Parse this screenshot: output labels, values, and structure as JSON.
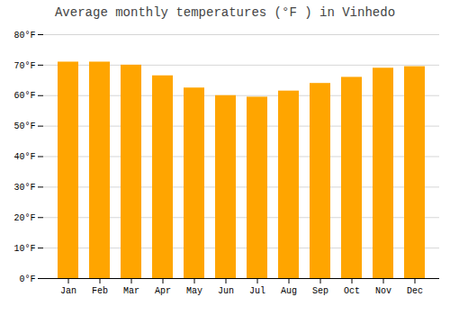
{
  "chart_data": {
    "type": "bar",
    "title": "Average monthly temperatures (°F ) in Vinhedo",
    "categories": [
      "Jan",
      "Feb",
      "Mar",
      "Apr",
      "May",
      "Jun",
      "Jul",
      "Aug",
      "Sep",
      "Oct",
      "Nov",
      "Dec"
    ],
    "values": [
      71,
      71,
      70,
      66.5,
      62.5,
      60,
      59.5,
      61.5,
      64,
      66,
      69,
      69.5
    ],
    "color": "#FFA500",
    "ylim": [
      0,
      80
    ],
    "yticks": [
      {
        "value": 0,
        "label": "0°F"
      },
      {
        "value": 10,
        "label": "10°F"
      },
      {
        "value": 20,
        "label": "20°F"
      },
      {
        "value": 30,
        "label": "30°F"
      },
      {
        "value": 40,
        "label": "40°F"
      },
      {
        "value": 50,
        "label": "50°F"
      },
      {
        "value": 60,
        "label": "60°F"
      },
      {
        "value": 70,
        "label": "70°F"
      },
      {
        "value": 80,
        "label": "80°F"
      }
    ],
    "grid": true
  }
}
